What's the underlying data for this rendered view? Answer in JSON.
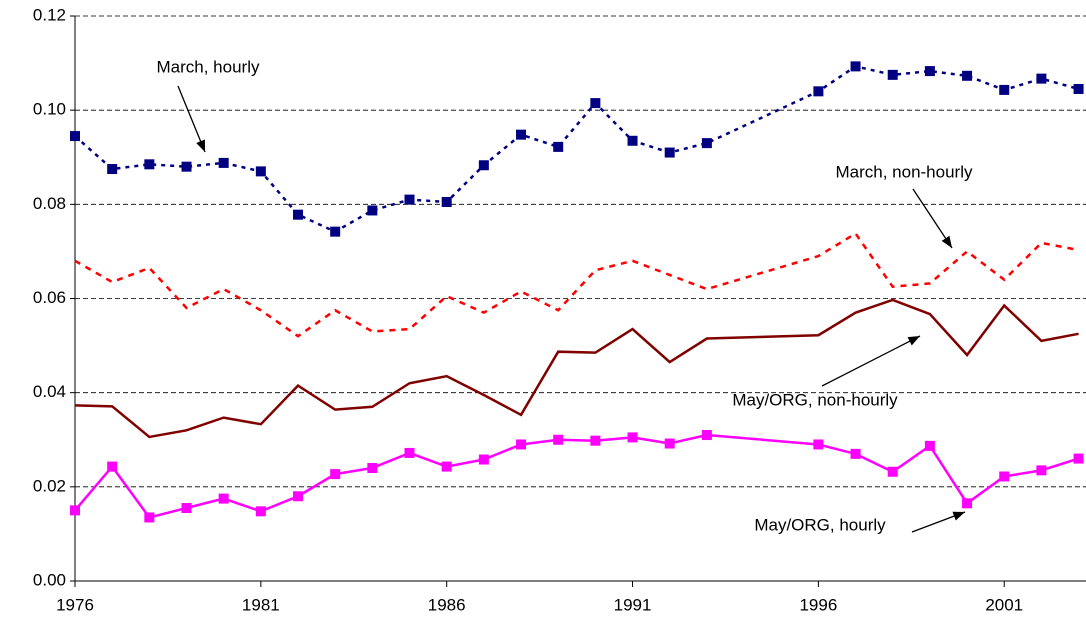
{
  "chart_data": {
    "type": "line",
    "x": [
      1976,
      1977,
      1978,
      1979,
      1980,
      1981,
      1982,
      1983,
      1984,
      1985,
      1986,
      1987,
      1988,
      1989,
      1990,
      1991,
      1992,
      1993,
      1996,
      1997,
      1998,
      1999,
      2000,
      2001,
      2002,
      2003
    ],
    "series": [
      {
        "color": "#000080",
        "line_style": "dotted",
        "marker": "square",
        "values": [
          0.0945,
          0.0875,
          0.0885,
          0.088,
          0.0888,
          0.087,
          0.0778,
          0.0742,
          0.0787,
          0.081,
          0.0805,
          0.0883,
          0.0948,
          0.0922,
          0.1015,
          0.0935,
          0.091,
          0.093,
          0.104,
          0.1093,
          0.1075,
          0.1083,
          0.1073,
          0.1043,
          0.1067,
          0.1045
        ]
      },
      {
        "color": "#ff0000",
        "line_style": "dashed",
        "marker": "none",
        "values": [
          0.068,
          0.0635,
          0.0665,
          0.058,
          0.062,
          0.0575,
          0.052,
          0.0575,
          0.053,
          0.0535,
          0.0605,
          0.057,
          0.0615,
          0.0575,
          0.066,
          0.068,
          0.065,
          0.062,
          0.069,
          0.0738,
          0.0625,
          0.0632,
          0.07,
          0.064,
          0.0718,
          0.0703
        ]
      },
      {
        "color": "#800000",
        "line_style": "solid",
        "marker": "none",
        "values": [
          0.0373,
          0.0371,
          0.0306,
          0.032,
          0.0347,
          0.0333,
          0.0415,
          0.0364,
          0.037,
          0.042,
          0.0435,
          0.0395,
          0.0353,
          0.0487,
          0.0485,
          0.0535,
          0.0465,
          0.0515,
          0.0522,
          0.057,
          0.0597,
          0.0567,
          0.048,
          0.0585,
          0.051,
          0.0525
        ]
      },
      {
        "color": "#ff00ff",
        "line_style": "solid",
        "marker": "square",
        "values": [
          0.015,
          0.0243,
          0.0135,
          0.0155,
          0.0175,
          0.0148,
          0.018,
          0.0227,
          0.024,
          0.0272,
          0.0243,
          0.0258,
          0.029,
          0.03,
          0.0298,
          0.0305,
          0.0292,
          0.031,
          0.029,
          0.027,
          0.0232,
          0.0287,
          0.0165,
          0.0222,
          0.0235,
          0.026
        ]
      }
    ],
    "annotations": [
      "March, hourly",
      "March, non-hourly",
      "May/ORG, non-hourly",
      "May/ORG, hourly"
    ],
    "xlim": [
      1976,
      2003.2
    ],
    "xticks": [
      1976,
      1981,
      1986,
      1991,
      1996,
      2001
    ],
    "ylim": [
      0,
      0.12
    ],
    "yticks": [
      {
        "value": 0,
        "label": "0.00"
      },
      {
        "value": 0.02,
        "label": "0.02"
      },
      {
        "value": 0.04,
        "label": "0.04"
      },
      {
        "value": 0.06,
        "label": "0.06"
      },
      {
        "value": 0.08,
        "label": "0.08"
      },
      {
        "value": 0.1,
        "label": "0.10"
      },
      {
        "value": 0.12,
        "label": "0.12"
      }
    ],
    "grid": true
  }
}
